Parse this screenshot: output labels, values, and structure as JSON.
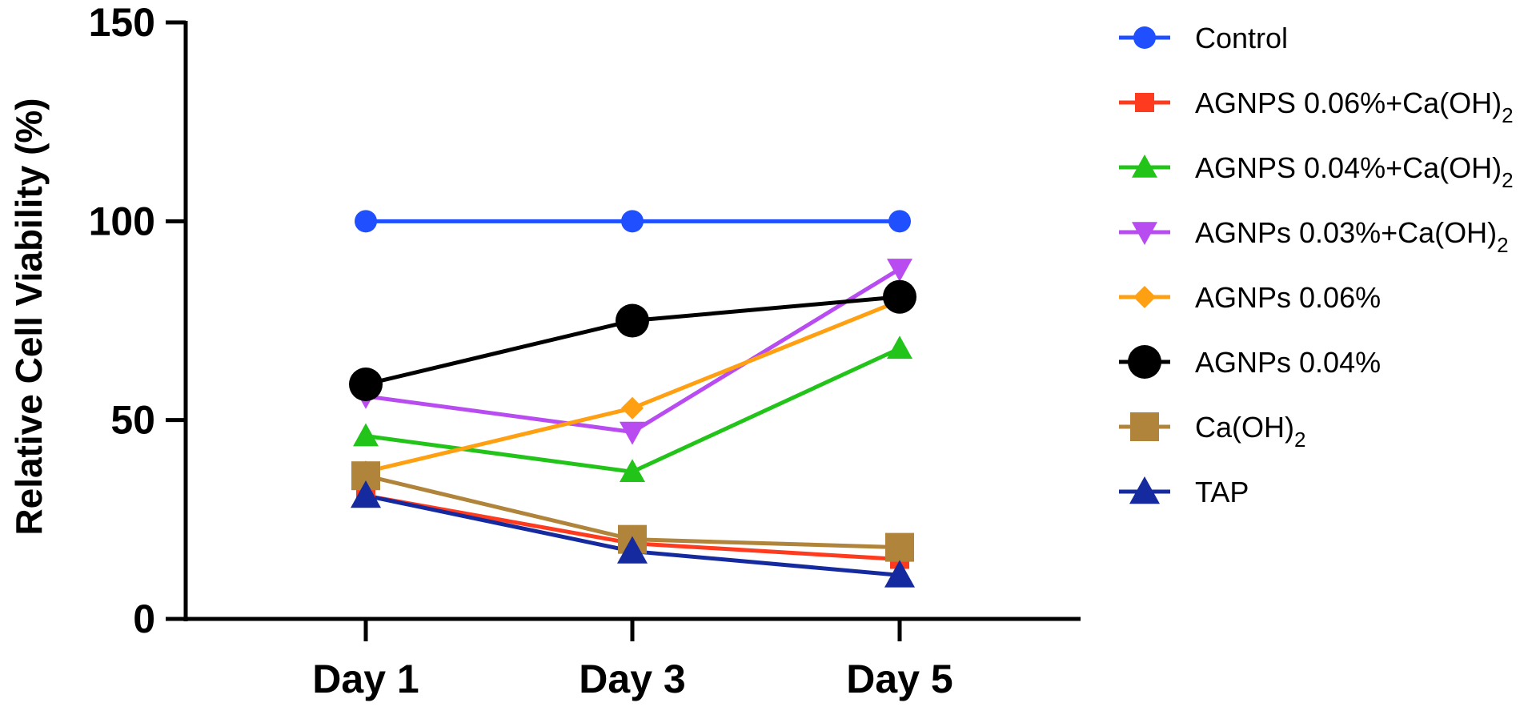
{
  "chart_data": {
    "type": "line",
    "title": "",
    "xlabel": "",
    "ylabel": "Relative Cell Viability (%)",
    "ylim": [
      0,
      150
    ],
    "yticks": [
      0,
      50,
      100,
      150
    ],
    "categories": [
      "Day 1",
      "Day 3",
      "Day 5"
    ],
    "legend_position": "right",
    "series": [
      {
        "name": "Control",
        "sub": "",
        "color": "#1f4fff",
        "marker": "circle-small",
        "values": [
          100,
          100,
          100
        ]
      },
      {
        "name": "AGNPS 0.06%+Ca(OH)",
        "sub": "2",
        "color": "#ff3b1f",
        "marker": "square-small",
        "values": [
          31,
          19,
          15
        ]
      },
      {
        "name": "AGNPS 0.04%+Ca(OH)",
        "sub": "2",
        "color": "#22c41a",
        "marker": "triangle-up",
        "values": [
          46,
          37,
          68
        ]
      },
      {
        "name": "AGNPs 0.03%+Ca(OH)",
        "sub": "2",
        "color": "#b84cf0",
        "marker": "triangle-down",
        "values": [
          56,
          47,
          88
        ]
      },
      {
        "name": "AGNPs 0.06%",
        "sub": "",
        "color": "#ff9f12",
        "marker": "diamond",
        "values": [
          37,
          53,
          80
        ]
      },
      {
        "name": "AGNPs 0.04%",
        "sub": "",
        "color": "#000000",
        "marker": "circle-large",
        "values": [
          59,
          75,
          81
        ]
      },
      {
        "name": "Ca(OH)",
        "sub": "2",
        "color": "#b0843a",
        "marker": "square-large",
        "values": [
          36,
          20,
          18
        ]
      },
      {
        "name": "TAP",
        "sub": "",
        "color": "#152a9e",
        "marker": "triangle-up-large",
        "values": [
          31,
          17,
          11
        ]
      }
    ]
  }
}
